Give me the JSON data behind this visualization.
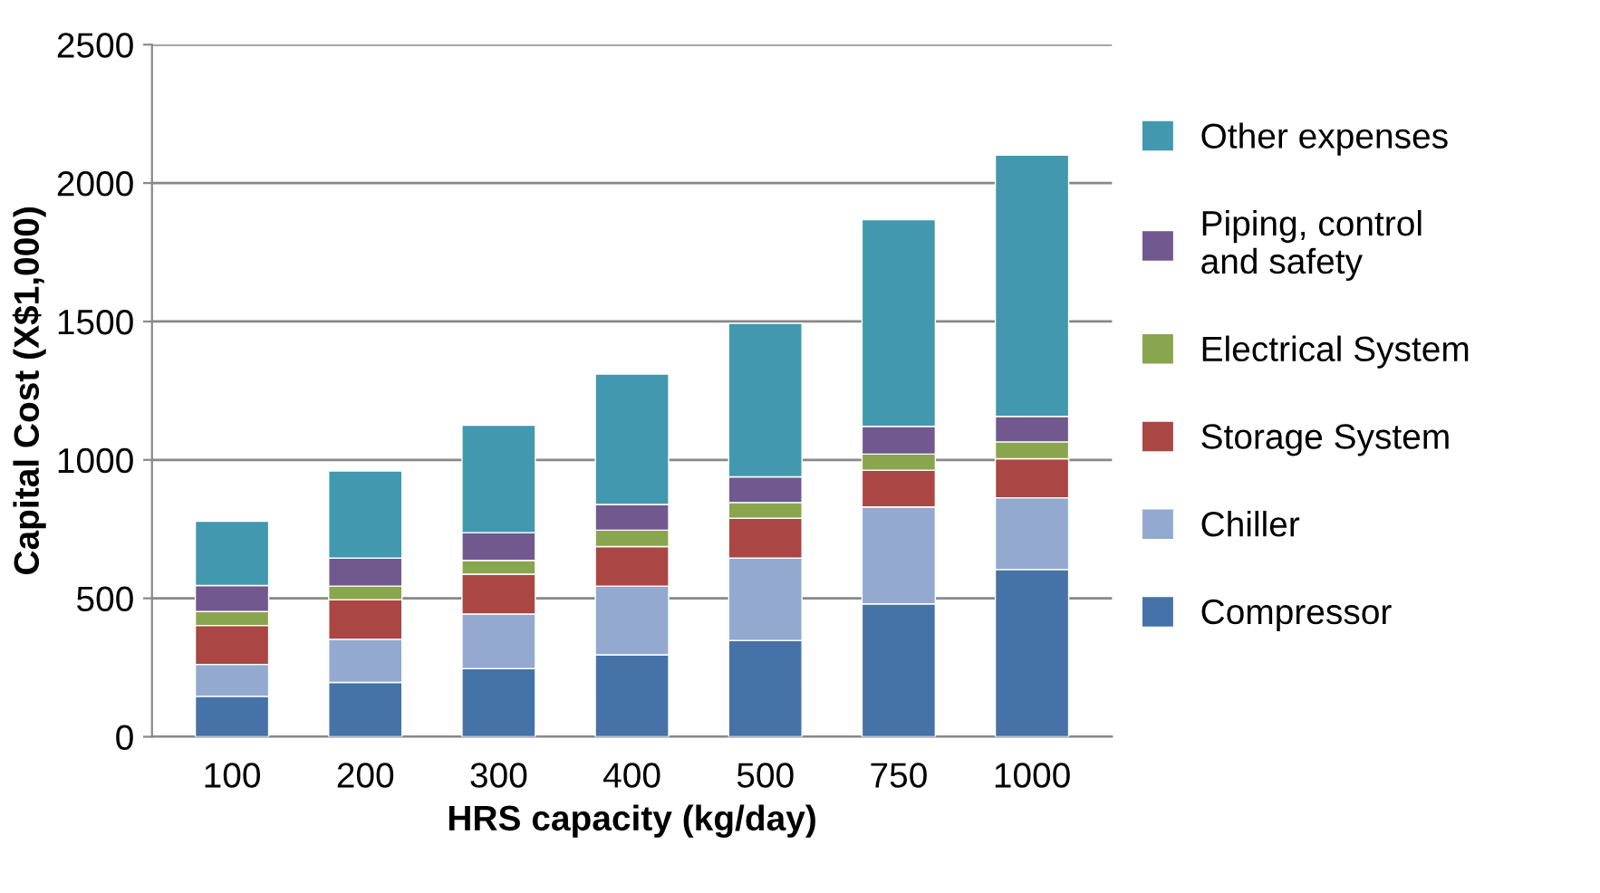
{
  "chart_data": {
    "type": "bar",
    "stacked": true,
    "xlabel": "HRS capacity (kg/day)",
    "ylabel": "Capital Cost (X$1,000)",
    "categories": [
      "100",
      "200",
      "300",
      "400",
      "500",
      "750",
      "1000"
    ],
    "series": [
      {
        "name": "Compressor",
        "color": "#4572a7",
        "values": [
          146,
          196,
          246,
          296,
          348,
          480,
          604
        ]
      },
      {
        "name": "Chiller",
        "color": "#93a9cf",
        "values": [
          115,
          156,
          197,
          248,
          297,
          350,
          259
        ]
      },
      {
        "name": "Storage System",
        "color": "#aa4643",
        "values": [
          141,
          143,
          144,
          143,
          144,
          133,
          141
        ]
      },
      {
        "name": "Electrical System",
        "color": "#89a54e",
        "values": [
          50,
          49,
          50,
          59,
          57,
          58,
          61
        ]
      },
      {
        "name": "Piping, control\nand safety",
        "color": "#71588f",
        "values": [
          94,
          101,
          100,
          93,
          93,
          100,
          92
        ]
      },
      {
        "name": "Other expenses",
        "color": "#4198af",
        "values": [
          232,
          315,
          388,
          471,
          554,
          747,
          944
        ]
      }
    ],
    "ylim": [
      0,
      2500
    ],
    "yticks": [
      0,
      500,
      1000,
      1500,
      2000,
      2500
    ],
    "grid": "y",
    "legend": "right"
  }
}
